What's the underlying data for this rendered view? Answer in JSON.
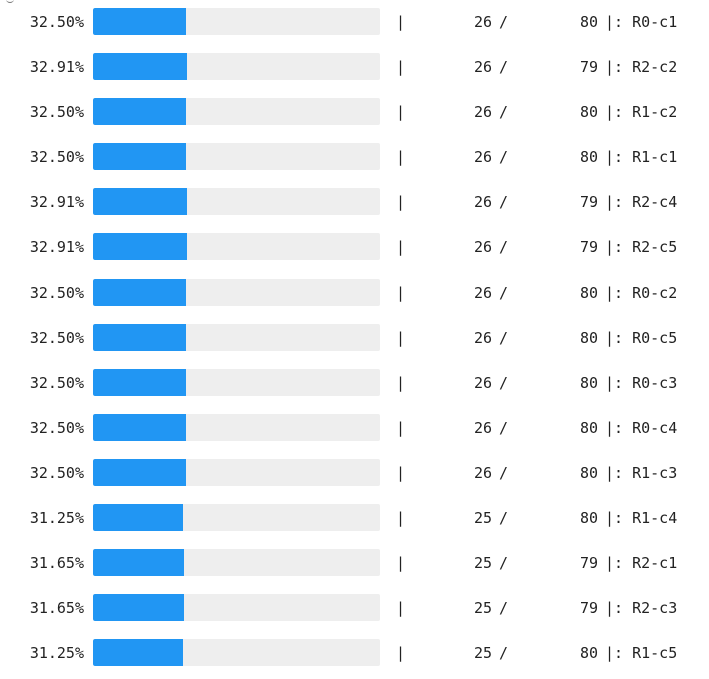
{
  "progress_rows": [
    {
      "percent": "32.50%",
      "fraction": 0.325,
      "separator": "|",
      "done": "26",
      "slash": "/",
      "total": "80",
      "suffix": "|: R0-c1"
    },
    {
      "percent": "32.91%",
      "fraction": 0.3291,
      "separator": "|",
      "done": "26",
      "slash": "/",
      "total": "79",
      "suffix": "|: R2-c2"
    },
    {
      "percent": "32.50%",
      "fraction": 0.325,
      "separator": "|",
      "done": "26",
      "slash": "/",
      "total": "80",
      "suffix": "|: R1-c2"
    },
    {
      "percent": "32.50%",
      "fraction": 0.325,
      "separator": "|",
      "done": "26",
      "slash": "/",
      "total": "80",
      "suffix": "|: R1-c1"
    },
    {
      "percent": "32.91%",
      "fraction": 0.3291,
      "separator": "|",
      "done": "26",
      "slash": "/",
      "total": "79",
      "suffix": "|: R2-c4"
    },
    {
      "percent": "32.91%",
      "fraction": 0.3291,
      "separator": "|",
      "done": "26",
      "slash": "/",
      "total": "79",
      "suffix": "|: R2-c5"
    },
    {
      "percent": "32.50%",
      "fraction": 0.325,
      "separator": "|",
      "done": "26",
      "slash": "/",
      "total": "80",
      "suffix": "|: R0-c2"
    },
    {
      "percent": "32.50%",
      "fraction": 0.325,
      "separator": "|",
      "done": "26",
      "slash": "/",
      "total": "80",
      "suffix": "|: R0-c5"
    },
    {
      "percent": "32.50%",
      "fraction": 0.325,
      "separator": "|",
      "done": "26",
      "slash": "/",
      "total": "80",
      "suffix": "|: R0-c3"
    },
    {
      "percent": "32.50%",
      "fraction": 0.325,
      "separator": "|",
      "done": "26",
      "slash": "/",
      "total": "80",
      "suffix": "|: R0-c4"
    },
    {
      "percent": "32.50%",
      "fraction": 0.325,
      "separator": "|",
      "done": "26",
      "slash": "/",
      "total": "80",
      "suffix": "|: R1-c3"
    },
    {
      "percent": "31.25%",
      "fraction": 0.3125,
      "separator": "|",
      "done": "25",
      "slash": "/",
      "total": "80",
      "suffix": "|: R1-c4"
    },
    {
      "percent": "31.65%",
      "fraction": 0.3165,
      "separator": "|",
      "done": "25",
      "slash": "/",
      "total": "79",
      "suffix": "|: R2-c1"
    },
    {
      "percent": "31.65%",
      "fraction": 0.3165,
      "separator": "|",
      "done": "25",
      "slash": "/",
      "total": "79",
      "suffix": "|: R2-c3"
    },
    {
      "percent": "31.25%",
      "fraction": 0.3125,
      "separator": "|",
      "done": "25",
      "slash": "/",
      "total": "80",
      "suffix": "|: R1-c5"
    }
  ],
  "colors": {
    "bar_fill": "#2196f3",
    "bar_track": "#eeeeee",
    "text": "#222222"
  }
}
